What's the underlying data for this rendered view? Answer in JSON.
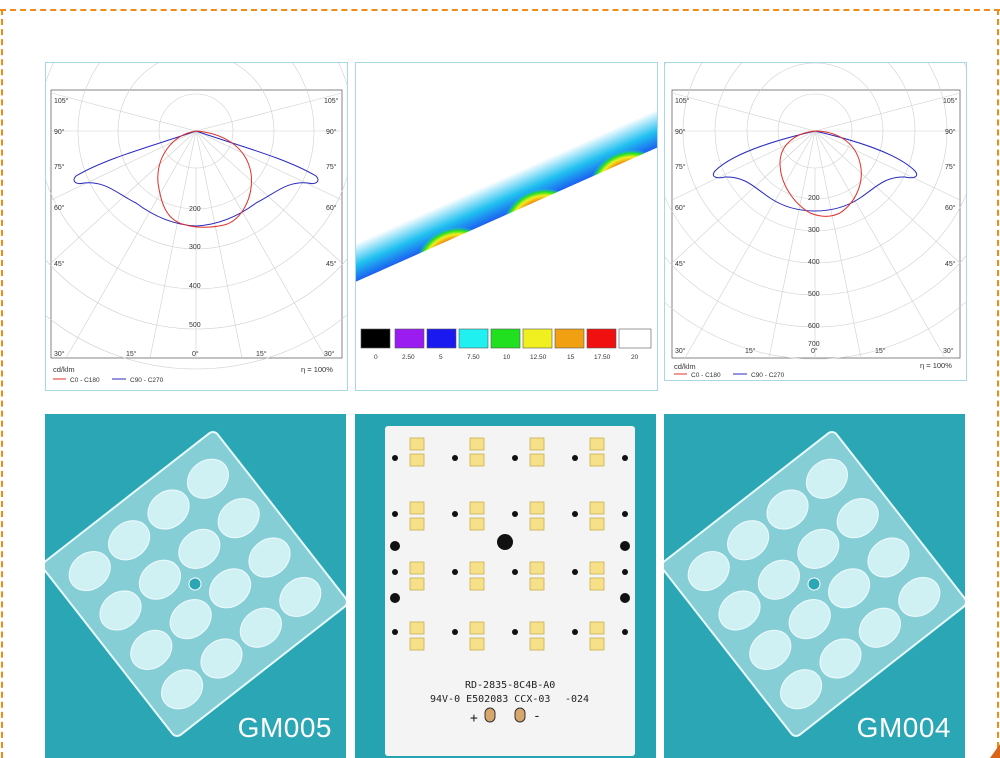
{
  "polar_left": {
    "angle_labels_left": [
      "105°",
      "90°",
      "75°",
      "60°",
      "45°",
      "30°"
    ],
    "angle_labels_right": [
      "105°",
      "90°",
      "75°",
      "60°",
      "45°",
      "30°"
    ],
    "bottom_labels": [
      "30°",
      "15°",
      "0°",
      "15°",
      "30°"
    ],
    "radial_labels": [
      "200",
      "300",
      "400",
      "500"
    ],
    "unit": "cd/klm",
    "efficiency": "η = 100%",
    "legend": [
      "C0 - C180",
      "C90 - C270"
    ],
    "colors": {
      "c0": "#e0302a",
      "c90": "#2a2ac0"
    }
  },
  "polar_right": {
    "angle_labels_left": [
      "105°",
      "90°",
      "75°",
      "60°",
      "45°",
      "30°"
    ],
    "angle_labels_right": [
      "105°",
      "90°",
      "75°",
      "60°",
      "45°",
      "30°"
    ],
    "bottom_labels": [
      "30°",
      "15°",
      "0°",
      "15°",
      "30°"
    ],
    "radial_labels": [
      "200",
      "300",
      "400",
      "500",
      "600",
      "700"
    ],
    "unit": "cd/klm",
    "efficiency": "η = 100%",
    "legend": [
      "C0 - C180",
      "C90 - C270"
    ],
    "colors": {
      "c0": "#e0302a",
      "c90": "#2a2ac0"
    }
  },
  "illuminance": {
    "scale_labels": [
      "0",
      "2.50",
      "5",
      "7.50",
      "10",
      "12.50",
      "15",
      "17.50",
      "20"
    ],
    "scale_colors": [
      "#000000",
      "#9a1cf0",
      "#1a1af0",
      "#20f0f0",
      "#20e020",
      "#f0f020",
      "#f0a010",
      "#f01010",
      "#ffffff"
    ]
  },
  "products": {
    "left_caption": "GM005",
    "right_caption": "GM004",
    "pcb_line1": "RD-2835-8C4B-A0",
    "pcb_line2": "94V-0 E502083 CCX-03",
    "pcb_line3": "-024",
    "pcb_plus": "+",
    "pcb_minus": "-"
  }
}
